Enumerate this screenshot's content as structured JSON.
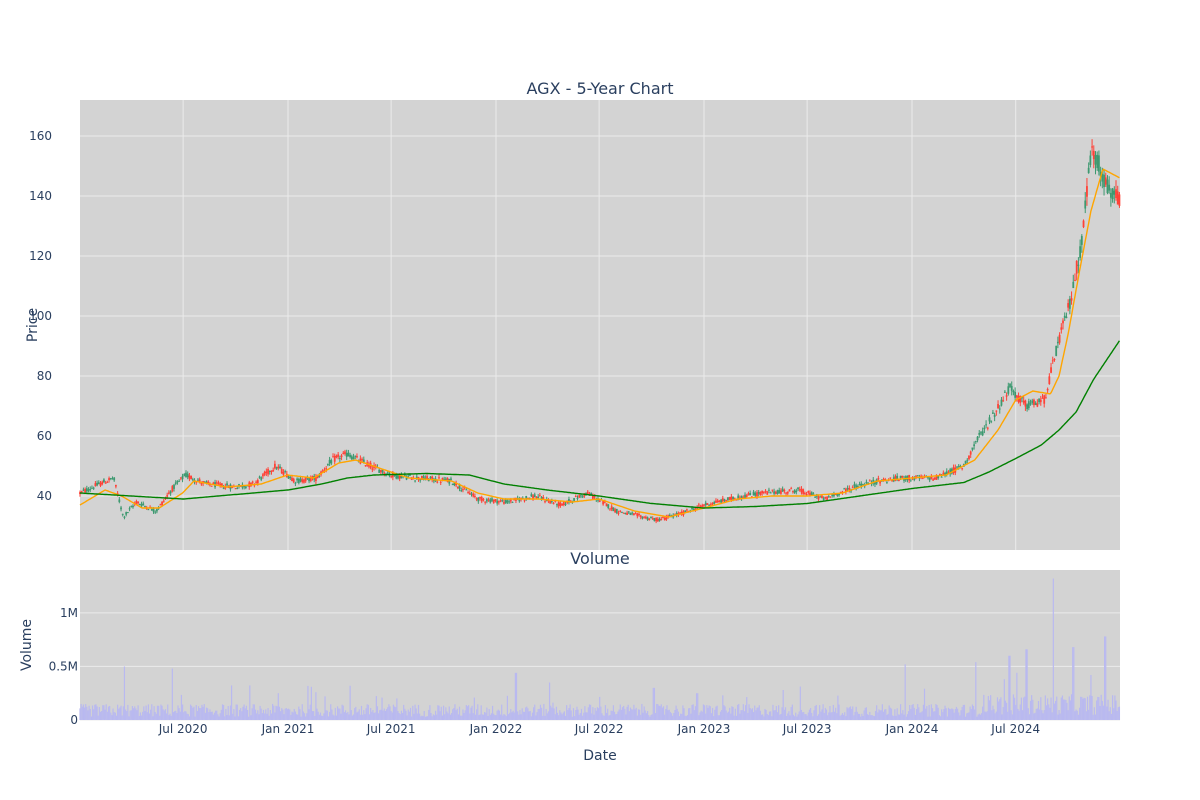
{
  "chart_data": [
    {
      "type": "candlestick",
      "title": "AGX - 5-Year Chart",
      "ylabel": "Price",
      "ylim": [
        22,
        172
      ],
      "yticks": [
        40,
        60,
        80,
        100,
        120,
        140,
        160
      ],
      "x_range": [
        "2020-01-02",
        "2024-12-31"
      ],
      "grid": true,
      "legend": "none",
      "colors": {
        "background": "#d3d3d3",
        "grid": "#ebebeb",
        "up": "#3d9970",
        "down": "#ff4136",
        "ma_short": "#ffa500",
        "ma_long": "#008000"
      },
      "price_path": [
        [
          "2020-01-02",
          41
        ],
        [
          "2020-02-05",
          44
        ],
        [
          "2020-03-01",
          46
        ],
        [
          "2020-03-18",
          33
        ],
        [
          "2020-04-10",
          38
        ],
        [
          "2020-05-15",
          35
        ],
        [
          "2020-06-10",
          42
        ],
        [
          "2020-07-05",
          47
        ],
        [
          "2020-08-10",
          44
        ],
        [
          "2020-10-01",
          43
        ],
        [
          "2020-11-01",
          44
        ],
        [
          "2020-12-10",
          50
        ],
        [
          "2021-01-15",
          45
        ],
        [
          "2021-02-20",
          46
        ],
        [
          "2021-03-20",
          52
        ],
        [
          "2021-04-15",
          54
        ],
        [
          "2021-05-15",
          51
        ],
        [
          "2021-07-01",
          47
        ],
        [
          "2021-08-15",
          46
        ],
        [
          "2021-10-15",
          45
        ],
        [
          "2021-12-01",
          39
        ],
        [
          "2022-01-20",
          38
        ],
        [
          "2022-03-10",
          40
        ],
        [
          "2022-04-25",
          37
        ],
        [
          "2022-06-10",
          41
        ],
        [
          "2022-08-01",
          35
        ],
        [
          "2022-10-10",
          32
        ],
        [
          "2022-11-20",
          34
        ],
        [
          "2023-01-01",
          37
        ],
        [
          "2023-02-15",
          39
        ],
        [
          "2023-04-10",
          41
        ],
        [
          "2023-06-15",
          42
        ],
        [
          "2023-08-01",
          39
        ],
        [
          "2023-09-20",
          43
        ],
        [
          "2023-11-01",
          45
        ],
        [
          "2023-12-20",
          46
        ],
        [
          "2024-02-10",
          46
        ],
        [
          "2024-04-01",
          50
        ],
        [
          "2024-04-22",
          58
        ],
        [
          "2024-05-20",
          66
        ],
        [
          "2024-06-20",
          76
        ],
        [
          "2024-07-20",
          70
        ],
        [
          "2024-08-20",
          72
        ],
        [
          "2024-09-15",
          92
        ],
        [
          "2024-10-05",
          105
        ],
        [
          "2024-10-25",
          125
        ],
        [
          "2024-11-10",
          155
        ],
        [
          "2024-11-25",
          150
        ],
        [
          "2024-12-10",
          142
        ],
        [
          "2024-12-31",
          138
        ]
      ],
      "ma_short": [
        [
          "2020-01-02",
          37
        ],
        [
          "2020-02-15",
          42
        ],
        [
          "2020-03-15",
          40
        ],
        [
          "2020-04-20",
          36
        ],
        [
          "2020-05-20",
          36
        ],
        [
          "2020-06-30",
          41
        ],
        [
          "2020-07-20",
          45
        ],
        [
          "2020-09-15",
          43
        ],
        [
          "2020-11-15",
          44
        ],
        [
          "2020-12-31",
          47
        ],
        [
          "2021-02-15",
          46
        ],
        [
          "2021-03-31",
          51
        ],
        [
          "2021-04-30",
          52
        ],
        [
          "2021-06-15",
          49
        ],
        [
          "2021-08-01",
          46
        ],
        [
          "2021-10-15",
          45
        ],
        [
          "2021-11-30",
          41
        ],
        [
          "2022-01-15",
          39
        ],
        [
          "2022-03-15",
          39
        ],
        [
          "2022-05-15",
          38
        ],
        [
          "2022-07-01",
          39
        ],
        [
          "2022-09-01",
          35
        ],
        [
          "2022-10-31",
          33
        ],
        [
          "2023-01-01",
          36
        ],
        [
          "2023-03-01",
          39
        ],
        [
          "2023-05-01",
          40
        ],
        [
          "2023-07-01",
          40
        ],
        [
          "2023-09-01",
          41
        ],
        [
          "2023-11-01",
          45
        ],
        [
          "2024-01-01",
          46
        ],
        [
          "2024-03-01",
          47
        ],
        [
          "2024-04-20",
          52
        ],
        [
          "2024-05-31",
          62
        ],
        [
          "2024-07-01",
          72
        ],
        [
          "2024-07-31",
          75
        ],
        [
          "2024-08-31",
          74
        ],
        [
          "2024-09-15",
          80
        ],
        [
          "2024-10-01",
          94
        ],
        [
          "2024-10-20",
          114
        ],
        [
          "2024-11-10",
          135
        ],
        [
          "2024-12-01",
          149
        ],
        [
          "2024-12-31",
          146
        ]
      ],
      "ma_long": [
        [
          "2020-01-02",
          41
        ],
        [
          "2020-04-01",
          40
        ],
        [
          "2020-07-01",
          39
        ],
        [
          "2020-10-01",
          40.5
        ],
        [
          "2021-01-01",
          42
        ],
        [
          "2021-03-01",
          44
        ],
        [
          "2021-04-15",
          46
        ],
        [
          "2021-06-01",
          47
        ],
        [
          "2021-09-01",
          47.5
        ],
        [
          "2021-11-15",
          47
        ],
        [
          "2022-01-15",
          44
        ],
        [
          "2022-04-01",
          42
        ],
        [
          "2022-07-01",
          40
        ],
        [
          "2022-10-01",
          37.5
        ],
        [
          "2023-01-01",
          36
        ],
        [
          "2023-04-01",
          36.5
        ],
        [
          "2023-07-01",
          37.5
        ],
        [
          "2023-10-01",
          40
        ],
        [
          "2024-01-01",
          42.5
        ],
        [
          "2024-04-01",
          44.5
        ],
        [
          "2024-05-15",
          48
        ],
        [
          "2024-07-01",
          52.5
        ],
        [
          "2024-08-15",
          57
        ],
        [
          "2024-09-15",
          62
        ],
        [
          "2024-10-15",
          68
        ],
        [
          "2024-11-15",
          79
        ],
        [
          "2024-12-31",
          92
        ]
      ]
    },
    {
      "type": "bar",
      "title": "Volume",
      "xlabel": "Date",
      "ylabel": "Volume",
      "ylim": [
        0,
        1400000
      ],
      "yticks": [
        0,
        500000,
        1000000
      ],
      "ytick_labels": [
        "0",
        "0.5M",
        "1M"
      ],
      "xticks": [
        "2020-07-01",
        "2021-01-01",
        "2021-07-01",
        "2022-01-01",
        "2022-07-01",
        "2023-01-01",
        "2023-07-01",
        "2024-01-01",
        "2024-07-01"
      ],
      "xtick_labels": [
        "Jul 2020",
        "Jan 2021",
        "Jul 2021",
        "Jan 2022",
        "Jul 2022",
        "Jan 2023",
        "Jul 2023",
        "Jan 2024",
        "Jul 2024"
      ],
      "grid": true,
      "colors": {
        "bar": "#b9b9f0"
      },
      "baseline_volume": 100000,
      "spikes": [
        [
          "2020-03-20",
          500000
        ],
        [
          "2020-06-12",
          480000
        ],
        [
          "2020-12-15",
          250000
        ],
        [
          "2021-04-20",
          320000
        ],
        [
          "2022-02-05",
          440000
        ],
        [
          "2022-04-05",
          350000
        ],
        [
          "2022-10-05",
          300000
        ],
        [
          "2022-12-20",
          250000
        ],
        [
          "2023-05-20",
          280000
        ],
        [
          "2023-12-20",
          520000
        ],
        [
          "2024-04-22",
          540000
        ],
        [
          "2024-06-20",
          600000
        ],
        [
          "2024-07-20",
          660000
        ],
        [
          "2024-09-05",
          1320000
        ],
        [
          "2024-10-10",
          680000
        ],
        [
          "2024-11-10",
          420000
        ],
        [
          "2024-12-05",
          780000
        ]
      ]
    }
  ]
}
